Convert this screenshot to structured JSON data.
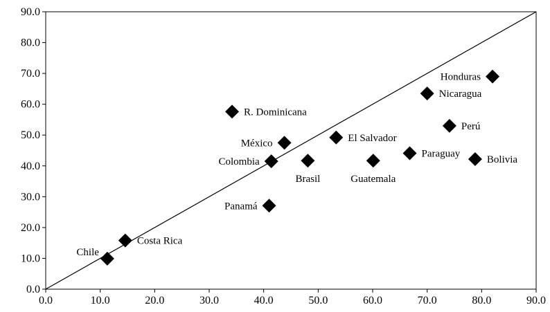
{
  "chart_data": {
    "type": "scatter",
    "title": "",
    "xlabel": "",
    "ylabel": "",
    "xlim": [
      0,
      90
    ],
    "ylim": [
      0,
      90
    ],
    "x_ticks": [
      "0.0",
      "10.0",
      "20.0",
      "30.0",
      "40.0",
      "50.0",
      "60.0",
      "70.0",
      "80.0",
      "90.0"
    ],
    "y_ticks": [
      "0.0",
      "10.0",
      "20.0",
      "30.0",
      "40.0",
      "50.0",
      "60.0",
      "70.0",
      "80.0",
      "90.0"
    ],
    "grid": false,
    "marker": "diamond",
    "marker_color": "#000000",
    "reference_line": {
      "x": [
        0,
        90
      ],
      "y": [
        0,
        90
      ]
    },
    "points": [
      {
        "label": "Chile",
        "x": 11.3,
        "y": 9.9,
        "label_pos": "upper-left"
      },
      {
        "label": "Costa Rica",
        "x": 14.6,
        "y": 15.8,
        "label_pos": "right"
      },
      {
        "label": "R. Dominicana",
        "x": 34.2,
        "y": 57.6,
        "label_pos": "right"
      },
      {
        "label": "Panamá",
        "x": 41.0,
        "y": 27.1,
        "label_pos": "left"
      },
      {
        "label": "Colombia",
        "x": 41.4,
        "y": 41.5,
        "label_pos": "left"
      },
      {
        "label": "México",
        "x": 43.8,
        "y": 47.5,
        "label_pos": "left"
      },
      {
        "label": "Brasil",
        "x": 48.1,
        "y": 41.7,
        "label_pos": "below"
      },
      {
        "label": "El Salvador",
        "x": 53.3,
        "y": 49.2,
        "label_pos": "right"
      },
      {
        "label": "Guatemala",
        "x": 60.1,
        "y": 41.7,
        "label_pos": "below"
      },
      {
        "label": "Paraguay",
        "x": 66.8,
        "y": 44.1,
        "label_pos": "right"
      },
      {
        "label": "Nicaragua",
        "x": 70.0,
        "y": 63.5,
        "label_pos": "right"
      },
      {
        "label": "Perú",
        "x": 74.1,
        "y": 53.0,
        "label_pos": "right"
      },
      {
        "label": "Bolivia",
        "x": 78.8,
        "y": 42.2,
        "label_pos": "right"
      },
      {
        "label": "Honduras",
        "x": 82.0,
        "y": 69.0,
        "label_pos": "left"
      }
    ]
  }
}
